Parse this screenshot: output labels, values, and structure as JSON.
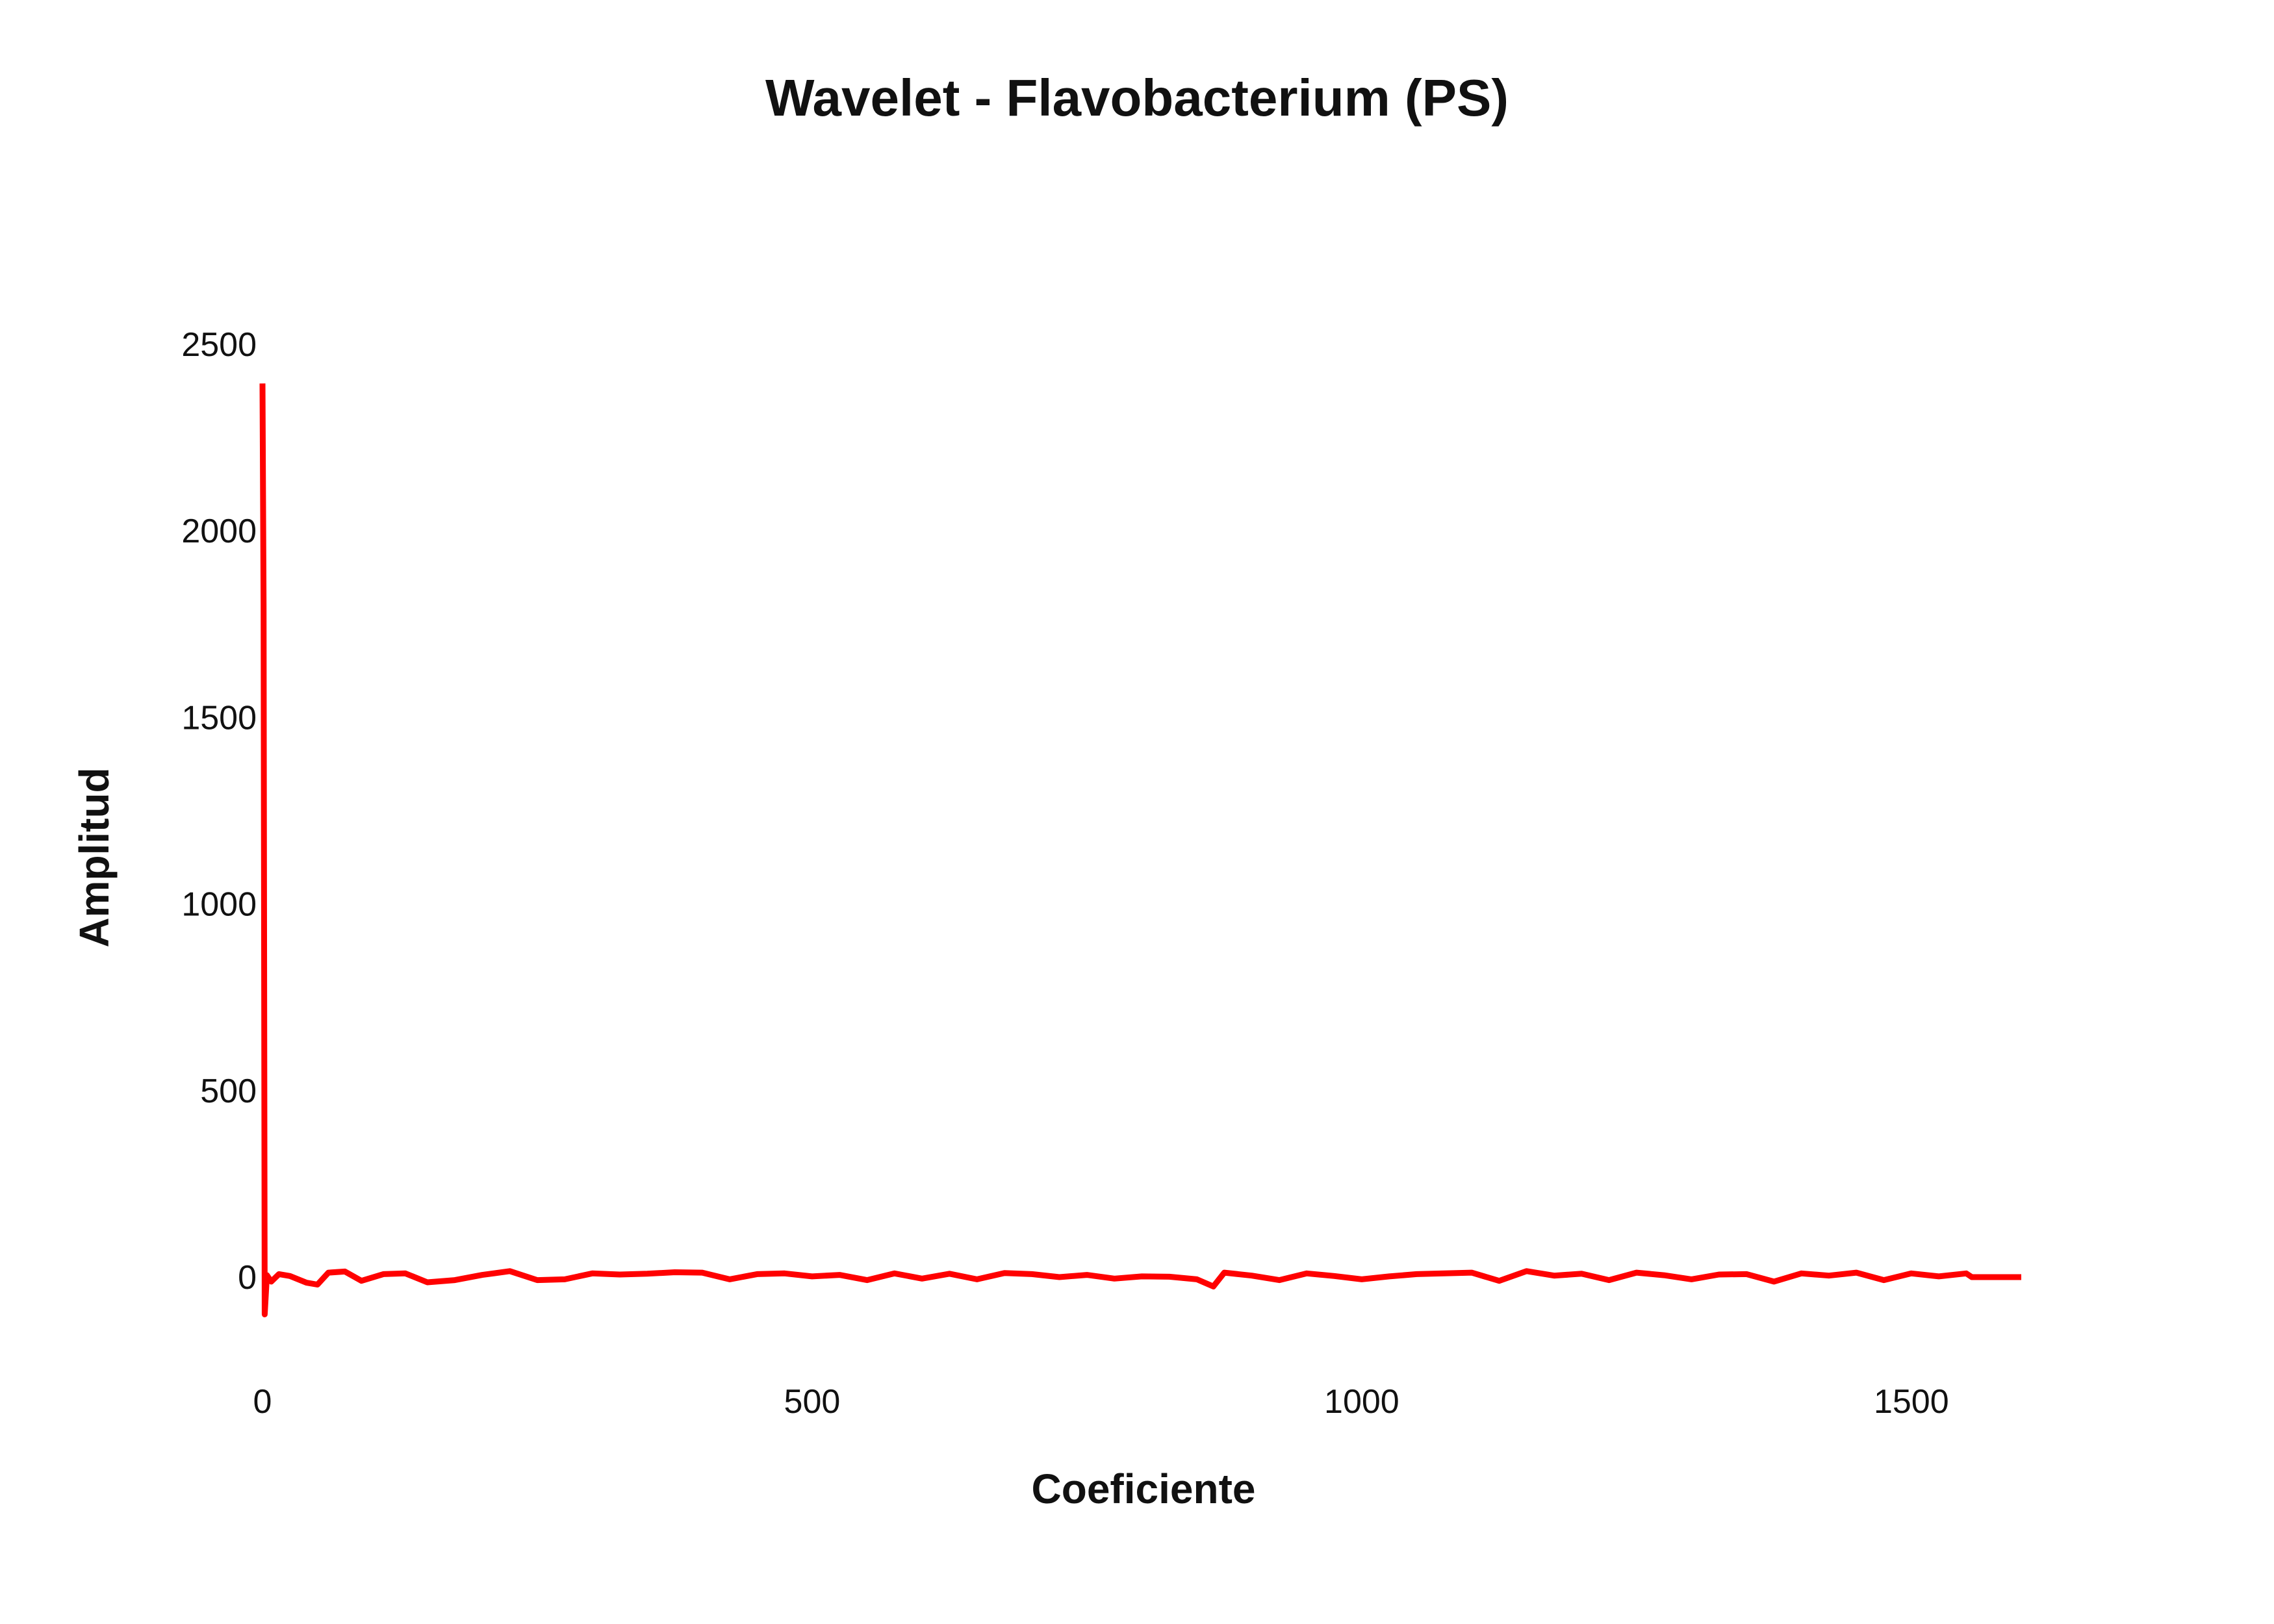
{
  "chart_data": {
    "type": "line",
    "title": "Wavelet - Flavobacterium (PS)",
    "xlabel": "Coeficiente",
    "ylabel": "Amplitud",
    "xlim": [
      0,
      1600
    ],
    "ylim": [
      -150,
      2500
    ],
    "x_ticks": [
      0,
      500,
      1000,
      1500
    ],
    "x_tick_labels": [
      "0",
      "500",
      "1000",
      "1500"
    ],
    "y_ticks": [
      0,
      500,
      1000,
      1500,
      2000,
      2500
    ],
    "y_tick_labels": [
      "0",
      "500",
      "1000",
      "1500",
      "2000",
      "2500"
    ],
    "grid": false,
    "legend": "none",
    "series": [
      {
        "color": "#ff0000",
        "x": [
          0,
          1,
          2,
          4,
          8,
          15,
          25,
          40,
          50,
          60,
          75,
          90,
          110,
          130,
          150,
          175,
          200,
          225,
          250,
          275,
          300,
          325,
          350,
          375,
          400,
          425,
          450,
          475,
          500,
          525,
          550,
          575,
          600,
          625,
          650,
          675,
          700,
          725,
          750,
          775,
          800,
          825,
          850,
          865,
          875,
          900,
          925,
          950,
          975,
          1000,
          1025,
          1050,
          1075,
          1100,
          1125,
          1150,
          1175,
          1200,
          1225,
          1250,
          1275,
          1300,
          1325,
          1350,
          1375,
          1400,
          1425,
          1450,
          1475,
          1500,
          1525,
          1550,
          1555,
          1575,
          1600
        ],
        "values": [
          2395,
          1800,
          -100,
          5,
          -12,
          8,
          3,
          -15,
          -20,
          12,
          15,
          -10,
          8,
          10,
          -14,
          -8,
          6,
          16,
          -8,
          -6,
          10,
          7,
          9,
          13,
          12,
          -6,
          8,
          10,
          2,
          6,
          -8,
          10,
          -4,
          9,
          -6,
          11,
          8,
          0,
          6,
          -4,
          2,
          1,
          -6,
          -25,
          12,
          4,
          -8,
          10,
          3,
          -6,
          2,
          8,
          10,
          12,
          -10,
          16,
          4,
          9,
          -8,
          12,
          5,
          -6,
          7,
          8,
          -12,
          10,
          4,
          12,
          -8,
          10,
          2,
          10,
          0,
          0,
          0
        ]
      }
    ]
  }
}
